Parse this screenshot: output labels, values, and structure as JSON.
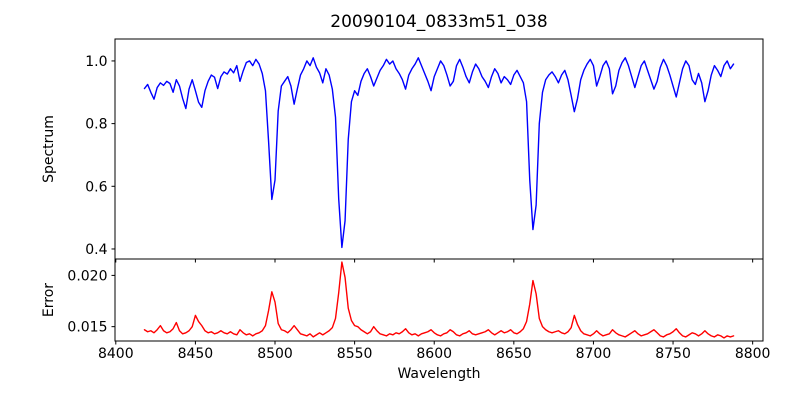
{
  "figure": {
    "title": "20090104_0833m51_038",
    "background": "#ffffff",
    "axis_color": "#000000",
    "text_color": "#000000"
  },
  "chart_data": {
    "type": "line",
    "title": "20090104_0833m51_038",
    "xlabel": "Wavelength",
    "grid": false,
    "legend_position": "none",
    "xlim": [
      8399.5,
      8806.5
    ],
    "xticks": [
      8400,
      8450,
      8500,
      8550,
      8600,
      8650,
      8700,
      8750,
      8800
    ],
    "xtick_labels": [
      "8400",
      "8450",
      "8500",
      "8550",
      "8600",
      "8650",
      "8700",
      "8750",
      "8800"
    ],
    "panels": [
      {
        "name": "spectrum",
        "ylabel": "Spectrum",
        "ylim": [
          0.368,
          1.07
        ],
        "yticks": [
          0.4,
          0.6,
          0.8,
          1.0
        ],
        "ytick_labels": [
          "0.4",
          "0.6",
          "0.8",
          "1.0"
        ],
        "height_ratio": 8,
        "series": {
          "name": "spectrum",
          "color": "#0000ff",
          "x_start": 8418,
          "x_step": 2,
          "values": [
            0.912,
            0.925,
            0.9,
            0.878,
            0.915,
            0.93,
            0.922,
            0.935,
            0.928,
            0.9,
            0.94,
            0.92,
            0.88,
            0.848,
            0.91,
            0.94,
            0.905,
            0.868,
            0.852,
            0.905,
            0.935,
            0.955,
            0.948,
            0.912,
            0.95,
            0.965,
            0.958,
            0.975,
            0.962,
            0.985,
            0.935,
            0.968,
            0.995,
            1.0,
            0.985,
            1.005,
            0.99,
            0.96,
            0.905,
            0.74,
            0.558,
            0.62,
            0.84,
            0.92,
            0.935,
            0.95,
            0.92,
            0.862,
            0.91,
            0.955,
            0.975,
            1.0,
            0.985,
            1.01,
            0.98,
            0.962,
            0.93,
            0.975,
            0.955,
            0.91,
            0.82,
            0.56,
            0.405,
            0.49,
            0.75,
            0.87,
            0.905,
            0.89,
            0.935,
            0.96,
            0.975,
            0.95,
            0.92,
            0.945,
            0.97,
            0.985,
            1.005,
            0.99,
            1.0,
            0.975,
            0.96,
            0.94,
            0.91,
            0.955,
            0.975,
            0.99,
            1.01,
            0.985,
            0.96,
            0.935,
            0.905,
            0.95,
            0.975,
            1.0,
            0.985,
            0.955,
            0.92,
            0.935,
            0.985,
            1.005,
            0.98,
            0.95,
            0.93,
            0.965,
            0.99,
            0.975,
            0.95,
            0.935,
            0.915,
            0.95,
            0.975,
            0.96,
            0.93,
            0.95,
            0.94,
            0.925,
            0.955,
            0.97,
            0.95,
            0.93,
            0.87,
            0.62,
            0.462,
            0.54,
            0.8,
            0.9,
            0.94,
            0.955,
            0.965,
            0.95,
            0.93,
            0.955,
            0.97,
            0.94,
            0.89,
            0.838,
            0.88,
            0.94,
            0.97,
            0.99,
            1.005,
            0.985,
            0.92,
            0.95,
            0.985,
            1.0,
            0.975,
            0.895,
            0.92,
            0.97,
            0.995,
            1.01,
            0.985,
            0.95,
            0.915,
            0.95,
            0.985,
            1.0,
            0.97,
            0.94,
            0.91,
            0.935,
            0.98,
            1.005,
            0.985,
            0.955,
            0.92,
            0.885,
            0.93,
            0.975,
            1.0,
            0.985,
            0.94,
            0.925,
            0.96,
            0.93,
            0.87,
            0.905,
            0.955,
            0.985,
            0.97,
            0.95,
            0.985,
            1.0,
            0.975,
            0.99
          ]
        }
      },
      {
        "name": "error",
        "ylabel": "Error",
        "ylim": [
          0.0136,
          0.0216
        ],
        "yticks": [
          0.015,
          0.02
        ],
        "ytick_labels": [
          "0.015",
          "0.020"
        ],
        "height_ratio": 3,
        "series": {
          "name": "error",
          "color": "#ff0000",
          "x_start": 8418,
          "x_step": 2,
          "values": [
            0.0147,
            0.0145,
            0.0146,
            0.0144,
            0.0147,
            0.0151,
            0.0146,
            0.0144,
            0.0145,
            0.0148,
            0.0154,
            0.0146,
            0.0143,
            0.0144,
            0.0146,
            0.015,
            0.0161,
            0.0155,
            0.0151,
            0.0146,
            0.0144,
            0.0145,
            0.0143,
            0.0144,
            0.0146,
            0.0144,
            0.0143,
            0.0145,
            0.0143,
            0.0142,
            0.0147,
            0.0144,
            0.0142,
            0.0143,
            0.0141,
            0.0143,
            0.0144,
            0.0146,
            0.0151,
            0.0166,
            0.0184,
            0.0174,
            0.0153,
            0.0147,
            0.0146,
            0.0144,
            0.0147,
            0.0151,
            0.0147,
            0.0143,
            0.0142,
            0.0141,
            0.0143,
            0.014,
            0.0142,
            0.0144,
            0.0142,
            0.0144,
            0.0146,
            0.0149,
            0.0158,
            0.0183,
            0.0213,
            0.0198,
            0.0168,
            0.0156,
            0.0151,
            0.015,
            0.0147,
            0.0145,
            0.0143,
            0.0145,
            0.015,
            0.0146,
            0.0143,
            0.0142,
            0.0141,
            0.0143,
            0.0142,
            0.0144,
            0.0143,
            0.0145,
            0.0148,
            0.0144,
            0.0142,
            0.0143,
            0.0141,
            0.0143,
            0.0144,
            0.0145,
            0.0147,
            0.0144,
            0.0142,
            0.0141,
            0.0143,
            0.0144,
            0.0147,
            0.0145,
            0.0142,
            0.0141,
            0.0143,
            0.0144,
            0.0146,
            0.0143,
            0.0142,
            0.0143,
            0.0144,
            0.0145,
            0.0147,
            0.0144,
            0.0142,
            0.0144,
            0.0146,
            0.0144,
            0.0145,
            0.0147,
            0.0144,
            0.0143,
            0.0145,
            0.0148,
            0.0155,
            0.0172,
            0.0195,
            0.0182,
            0.0158,
            0.015,
            0.0147,
            0.0145,
            0.0144,
            0.0145,
            0.0146,
            0.0144,
            0.0143,
            0.0145,
            0.0149,
            0.0161,
            0.0152,
            0.0146,
            0.0143,
            0.0142,
            0.0141,
            0.0143,
            0.0146,
            0.0143,
            0.0141,
            0.0142,
            0.0143,
            0.0147,
            0.0144,
            0.0142,
            0.0141,
            0.014,
            0.0142,
            0.0144,
            0.0146,
            0.0143,
            0.0141,
            0.0142,
            0.0143,
            0.0145,
            0.0147,
            0.0144,
            0.0141,
            0.014,
            0.0142,
            0.0143,
            0.0145,
            0.0148,
            0.0144,
            0.0141,
            0.014,
            0.0142,
            0.0144,
            0.0143,
            0.0141,
            0.0143,
            0.0146,
            0.0143,
            0.0141,
            0.014,
            0.0142,
            0.0141,
            0.0139,
            0.0141,
            0.014,
            0.0141
          ]
        }
      }
    ]
  }
}
